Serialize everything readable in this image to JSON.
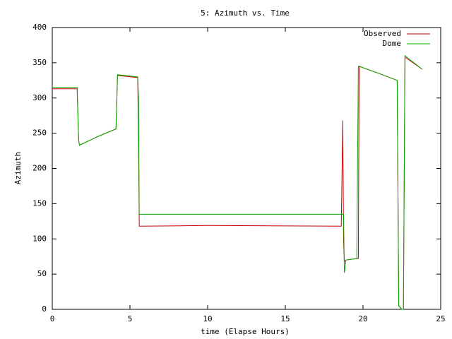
{
  "chart_data": {
    "type": "line",
    "title": "5: Azimuth vs. Time",
    "xlabel": "time (Elapse Hours)",
    "ylabel": "Azimuth",
    "x": [
      0,
      1.6,
      1.7,
      1.75,
      3,
      4.1,
      4.2,
      5.5,
      5.55,
      5.6,
      10,
      18.6,
      18.7,
      18.75,
      18.8,
      18.9,
      19.6,
      19.7,
      19.75,
      21,
      22.2,
      22.3,
      22.5,
      22.6,
      22.7,
      23.8
    ],
    "series": [
      {
        "name": "Observed",
        "color": "#cc0000",
        "values": [
          313,
          313,
          240,
          233,
          246,
          256,
          332,
          329,
          240,
          118,
          119,
          118,
          268,
          95,
          68,
          70,
          72,
          72,
          345,
          335,
          325,
          5,
          0,
          0,
          358,
          341
        ]
      },
      {
        "name": "Dome",
        "color": "#00aa00",
        "values": [
          315,
          315,
          240,
          233,
          246,
          256,
          333,
          330,
          300,
          135,
          135,
          135,
          135,
          135,
          52,
          70,
          72,
          345,
          345,
          335,
          325,
          5,
          0,
          0,
          360,
          341
        ]
      }
    ],
    "xlim": [
      0,
      25
    ],
    "xticks": [
      0,
      5,
      10,
      15,
      20,
      25
    ],
    "ylim": [
      0,
      400
    ],
    "yticks": [
      0,
      50,
      100,
      150,
      200,
      250,
      300,
      350,
      400
    ],
    "legend": "upper right"
  }
}
